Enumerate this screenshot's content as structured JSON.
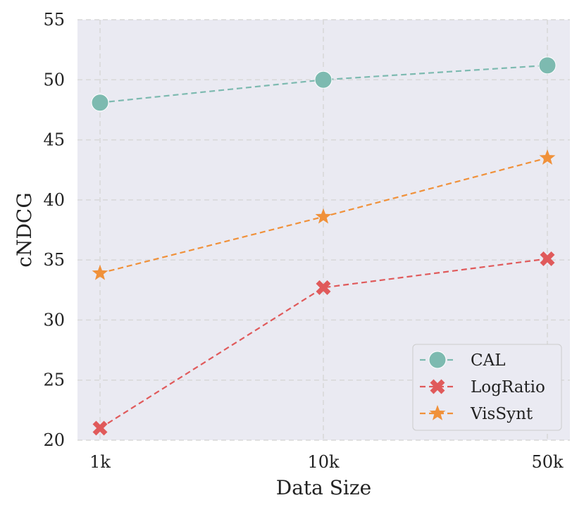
{
  "chart_data": {
    "type": "line",
    "title": "",
    "xlabel": "Data Size",
    "ylabel": "cNDCG",
    "categories": [
      "1k",
      "10k",
      "50k"
    ],
    "ylim": [
      20,
      55
    ],
    "yticks": [
      20,
      25,
      30,
      35,
      40,
      45,
      50,
      55
    ],
    "grid": true,
    "legend_position": "bottom-right",
    "series": [
      {
        "name": "CAL",
        "values": [
          48.1,
          50.0,
          51.2
        ],
        "color": "#7dbab0",
        "marker": "circle",
        "linestyle": "dashed"
      },
      {
        "name": "LogRatio",
        "values": [
          21.0,
          32.7,
          35.1
        ],
        "color": "#e05a5b",
        "marker": "x",
        "linestyle": "dashed"
      },
      {
        "name": "VisSynt",
        "values": [
          33.9,
          38.6,
          43.5
        ],
        "color": "#f0913a",
        "marker": "star",
        "linestyle": "dashed"
      }
    ]
  }
}
